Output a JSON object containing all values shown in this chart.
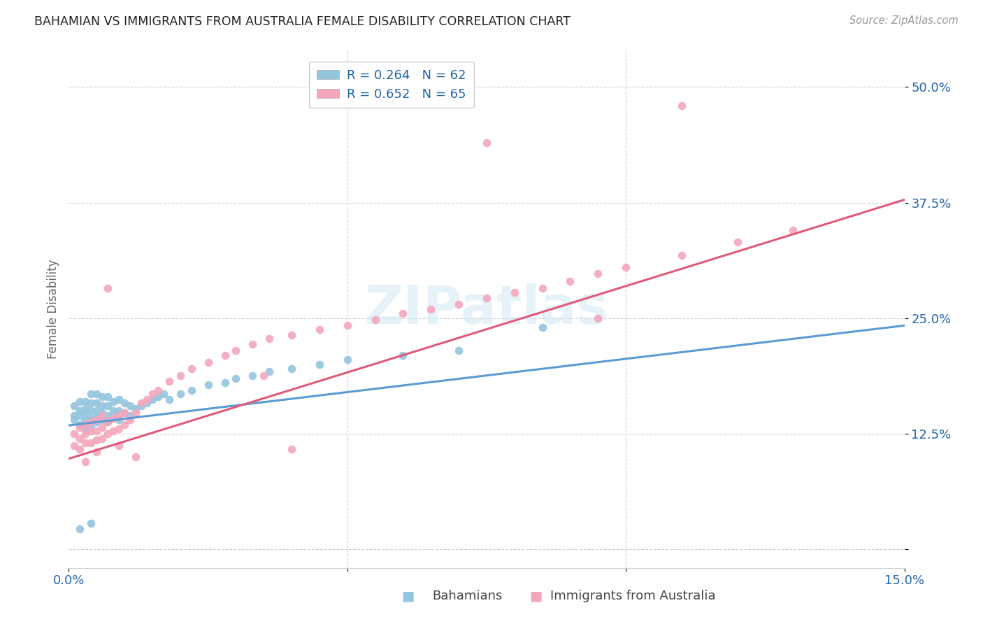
{
  "title": "BAHAMIAN VS IMMIGRANTS FROM AUSTRALIA FEMALE DISABILITY CORRELATION CHART",
  "source": "Source: ZipAtlas.com",
  "ylabel": "Female Disability",
  "y_ticks": [
    0.0,
    0.125,
    0.25,
    0.375,
    0.5
  ],
  "y_tick_labels": [
    "",
    "12.5%",
    "25.0%",
    "37.5%",
    "50.0%"
  ],
  "x_lim": [
    0.0,
    0.15
  ],
  "y_lim": [
    -0.02,
    0.54
  ],
  "legend_r1": "R = 0.264",
  "legend_n1": "N = 62",
  "legend_r2": "R = 0.652",
  "legend_n2": "N = 65",
  "blue_color": "#92c5de",
  "pink_color": "#f4a6bc",
  "blue_line_color": "#5b9bd5",
  "pink_line_color": "#e05a7a",
  "legend_text_color": "#2166ac",
  "watermark": "ZIPatlas",
  "blue_line_x0": 0.0,
  "blue_line_y0": 0.134,
  "blue_line_x1": 0.15,
  "blue_line_y1": 0.242,
  "pink_line_x0": 0.0,
  "pink_line_y0": 0.098,
  "pink_line_x1": 0.15,
  "pink_line_y1": 0.378,
  "bahamians_x": [
    0.001,
    0.001,
    0.001,
    0.002,
    0.002,
    0.002,
    0.002,
    0.003,
    0.003,
    0.003,
    0.003,
    0.003,
    0.004,
    0.004,
    0.004,
    0.004,
    0.004,
    0.005,
    0.005,
    0.005,
    0.005,
    0.005,
    0.006,
    0.006,
    0.006,
    0.006,
    0.007,
    0.007,
    0.007,
    0.007,
    0.008,
    0.008,
    0.008,
    0.009,
    0.009,
    0.009,
    0.01,
    0.01,
    0.011,
    0.011,
    0.012,
    0.013,
    0.014,
    0.015,
    0.016,
    0.017,
    0.018,
    0.02,
    0.022,
    0.025,
    0.028,
    0.03,
    0.033,
    0.036,
    0.04,
    0.045,
    0.05,
    0.06,
    0.07,
    0.085,
    0.002,
    0.004
  ],
  "bahamians_y": [
    0.14,
    0.145,
    0.155,
    0.135,
    0.145,
    0.15,
    0.16,
    0.13,
    0.14,
    0.148,
    0.152,
    0.16,
    0.132,
    0.142,
    0.15,
    0.158,
    0.168,
    0.138,
    0.144,
    0.15,
    0.158,
    0.168,
    0.14,
    0.148,
    0.155,
    0.165,
    0.138,
    0.145,
    0.155,
    0.165,
    0.142,
    0.15,
    0.16,
    0.14,
    0.15,
    0.162,
    0.148,
    0.158,
    0.145,
    0.155,
    0.152,
    0.155,
    0.158,
    0.162,
    0.165,
    0.168,
    0.162,
    0.168,
    0.172,
    0.178,
    0.18,
    0.185,
    0.188,
    0.192,
    0.195,
    0.2,
    0.205,
    0.21,
    0.215,
    0.24,
    0.022,
    0.028
  ],
  "australia_x": [
    0.001,
    0.001,
    0.002,
    0.002,
    0.002,
    0.003,
    0.003,
    0.003,
    0.004,
    0.004,
    0.004,
    0.005,
    0.005,
    0.005,
    0.006,
    0.006,
    0.006,
    0.007,
    0.007,
    0.008,
    0.008,
    0.009,
    0.009,
    0.01,
    0.01,
    0.011,
    0.012,
    0.013,
    0.014,
    0.015,
    0.016,
    0.018,
    0.02,
    0.022,
    0.025,
    0.028,
    0.03,
    0.033,
    0.036,
    0.04,
    0.045,
    0.05,
    0.055,
    0.06,
    0.065,
    0.07,
    0.075,
    0.08,
    0.085,
    0.09,
    0.095,
    0.1,
    0.11,
    0.12,
    0.13,
    0.003,
    0.005,
    0.007,
    0.009,
    0.012,
    0.035,
    0.04,
    0.095,
    0.11,
    0.075
  ],
  "australia_y": [
    0.112,
    0.125,
    0.108,
    0.12,
    0.132,
    0.115,
    0.125,
    0.135,
    0.115,
    0.128,
    0.138,
    0.118,
    0.128,
    0.14,
    0.12,
    0.132,
    0.145,
    0.125,
    0.138,
    0.128,
    0.142,
    0.13,
    0.145,
    0.135,
    0.148,
    0.14,
    0.148,
    0.158,
    0.162,
    0.168,
    0.172,
    0.182,
    0.188,
    0.195,
    0.202,
    0.21,
    0.215,
    0.222,
    0.228,
    0.232,
    0.238,
    0.242,
    0.248,
    0.255,
    0.26,
    0.265,
    0.272,
    0.278,
    0.282,
    0.29,
    0.298,
    0.305,
    0.318,
    0.332,
    0.345,
    0.095,
    0.105,
    0.282,
    0.112,
    0.1,
    0.188,
    0.108,
    0.25,
    0.48,
    0.44
  ]
}
